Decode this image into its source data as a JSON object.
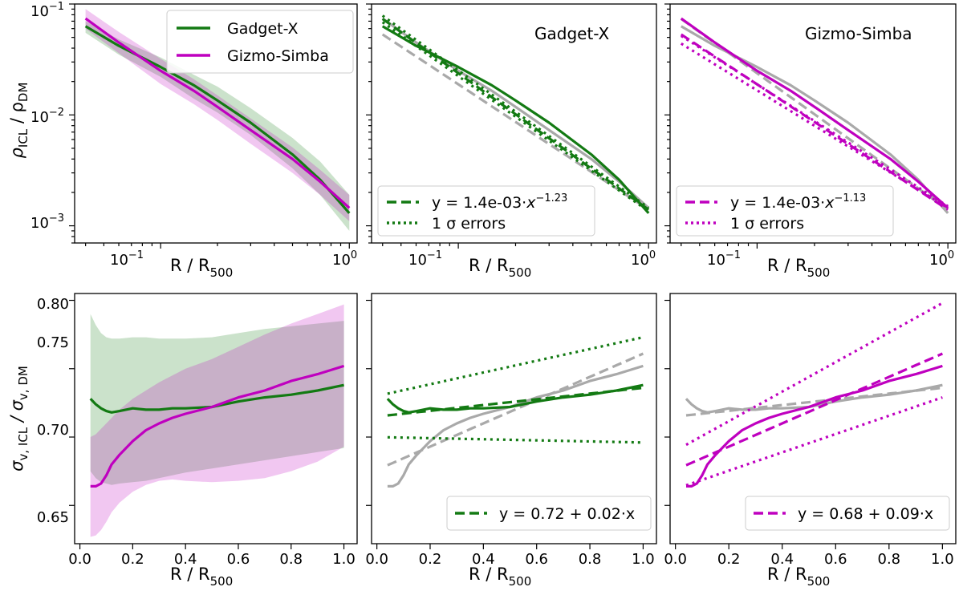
{
  "figure": {
    "axis_labels": {
      "x_main": "R / R",
      "x_sub": "500",
      "y_top_main": "ρ",
      "y_top_sub_num": "ICL",
      "y_top_sep": " / ρ",
      "y_top_sub_den": "DM",
      "y_bottom_main": "σ",
      "y_bottom_sub_num": "v, ICL",
      "y_bottom_sep": " / σ",
      "y_bottom_sub_den": "v, DM"
    },
    "log_ticks_y": [
      {
        "base": "10",
        "exp": "−1",
        "value": 0.1
      },
      {
        "base": "10",
        "exp": "−2",
        "value": 0.01
      },
      {
        "base": "10",
        "exp": "−3",
        "value": 0.001
      }
    ],
    "log_ticks_x": [
      {
        "base": "10",
        "exp": "−1",
        "value": 0.1
      },
      {
        "base": "10",
        "exp": "0",
        "value": 1
      }
    ],
    "lin_ticks_x": [
      "0.0",
      "0.2",
      "0.4",
      "0.6",
      "0.8",
      "1.0"
    ],
    "lin_ticks_y": [
      "0.65",
      "0.70",
      "0.75",
      "0.80"
    ],
    "colors": {
      "gadget": "#137a13",
      "gizmo": "#bf00bf",
      "gray": "#a9a9a9"
    },
    "legend_main": {
      "gadget": "Gadget-X",
      "gizmo": "Gizmo-Simba"
    },
    "panel_titles": {
      "top_middle": "Gadget-X",
      "top_right": "Gizmo-Simba"
    },
    "fit_legend_top_gadget": {
      "prefix": "y = 1.4e-03·",
      "x": "x",
      "exp": "−1.23",
      "errors": "1 σ errors"
    },
    "fit_legend_top_gizmo": {
      "prefix": "y = 1.4e-03·",
      "x": "x",
      "exp": "−1.13",
      "errors": "1 σ errors"
    },
    "fit_legend_bottom_gadget": "y = 0.72 + 0.02·x",
    "fit_legend_bottom_gizmo": "y = 0.68 + 0.09·x"
  },
  "chart_data": [
    {
      "panel": "top-left",
      "type": "line",
      "xscale": "log",
      "yscale": "log",
      "xlim": [
        0.035,
        1.1
      ],
      "ylim": [
        0.0007,
        0.1
      ],
      "xlabel": "R / R500",
      "ylabel": "ρICL / ρDM",
      "legend": "top-right",
      "series": [
        {
          "name": "Gadget-X",
          "x": [
            0.04,
            0.06,
            0.1,
            0.15,
            0.2,
            0.3,
            0.5,
            0.7,
            1.0
          ],
          "y": [
            0.063,
            0.042,
            0.027,
            0.0185,
            0.0135,
            0.0085,
            0.0044,
            0.0026,
            0.0013
          ],
          "lo": [
            0.055,
            0.035,
            0.022,
            0.014,
            0.0105,
            0.0066,
            0.0033,
            0.0019,
            0.0009
          ],
          "hi": [
            0.07,
            0.048,
            0.033,
            0.023,
            0.018,
            0.0115,
            0.0062,
            0.0038,
            0.0019
          ]
        },
        {
          "name": "Gizmo-Simba",
          "x": [
            0.04,
            0.06,
            0.1,
            0.15,
            0.2,
            0.3,
            0.5,
            0.7,
            1.0
          ],
          "y": [
            0.074,
            0.045,
            0.025,
            0.0165,
            0.0118,
            0.0073,
            0.004,
            0.0025,
            0.00145
          ],
          "lo": [
            0.06,
            0.036,
            0.019,
            0.0125,
            0.009,
            0.0055,
            0.003,
            0.0019,
            0.0011
          ],
          "hi": [
            0.09,
            0.056,
            0.032,
            0.021,
            0.015,
            0.0093,
            0.0051,
            0.0032,
            0.0019
          ]
        }
      ]
    },
    {
      "panel": "top-middle",
      "type": "line",
      "xscale": "log",
      "yscale": "log",
      "xlim": [
        0.035,
        1.1
      ],
      "ylim": [
        0.0007,
        0.1
      ],
      "title": "Gadget-X",
      "legend": "bottom-left",
      "series": [
        {
          "name": "Gadget-X",
          "x": [
            0.04,
            0.06,
            0.1,
            0.15,
            0.2,
            0.3,
            0.5,
            0.7,
            1.0
          ],
          "y": [
            0.063,
            0.042,
            0.027,
            0.0185,
            0.0135,
            0.0085,
            0.0044,
            0.0026,
            0.0013
          ]
        },
        {
          "name": "Gizmo-Simba (gray)",
          "x": [
            0.04,
            0.06,
            0.1,
            0.15,
            0.2,
            0.3,
            0.5,
            0.7,
            1.0
          ],
          "y": [
            0.074,
            0.045,
            0.025,
            0.0165,
            0.0118,
            0.0073,
            0.004,
            0.0025,
            0.00145
          ]
        },
        {
          "name": "fit",
          "style": "dashed",
          "amplitude": 0.0014,
          "exponent": -1.23
        },
        {
          "name": "1 σ errors",
          "style": "dotted",
          "amplitudes": [
            0.00145,
            0.00135
          ],
          "exponents": [
            -1.24,
            -1.22
          ]
        },
        {
          "name": "Gizmo-Simba fit (gray)",
          "style": "dashed",
          "amplitude": 0.0014,
          "exponent": -1.13
        }
      ]
    },
    {
      "panel": "top-right",
      "type": "line",
      "xscale": "log",
      "yscale": "log",
      "xlim": [
        0.035,
        1.1
      ],
      "ylim": [
        0.0007,
        0.1
      ],
      "title": "Gizmo-Simba",
      "legend": "bottom-left",
      "series": [
        {
          "name": "Gizmo-Simba",
          "x": [
            0.04,
            0.06,
            0.1,
            0.15,
            0.2,
            0.3,
            0.5,
            0.7,
            1.0
          ],
          "y": [
            0.074,
            0.045,
            0.025,
            0.0165,
            0.0118,
            0.0073,
            0.004,
            0.0025,
            0.00145
          ]
        },
        {
          "name": "Gadget-X (gray)",
          "x": [
            0.04,
            0.06,
            0.1,
            0.15,
            0.2,
            0.3,
            0.5,
            0.7,
            1.0
          ],
          "y": [
            0.063,
            0.042,
            0.027,
            0.0185,
            0.0135,
            0.0085,
            0.0044,
            0.0026,
            0.0013
          ]
        },
        {
          "name": "fit",
          "style": "dashed",
          "amplitude": 0.0014,
          "exponent": -1.13
        },
        {
          "name": "1 σ errors",
          "style": "dotted",
          "amplitudes": [
            0.0015,
            0.00145
          ],
          "exponents": [
            -1.1,
            -1.06
          ]
        },
        {
          "name": "Gadget-X fit (gray)",
          "style": "dashed",
          "amplitude": 0.0014,
          "exponent": -1.23
        }
      ]
    },
    {
      "panel": "bottom-left",
      "type": "line",
      "xlim": [
        -0.02,
        1.05
      ],
      "ylim": [
        0.622,
        0.805
      ],
      "xlabel": "R / R500",
      "ylabel": "σv,ICL / σv,DM",
      "series": [
        {
          "name": "Gadget-X",
          "x": [
            0.04,
            0.06,
            0.08,
            0.1,
            0.12,
            0.15,
            0.2,
            0.25,
            0.3,
            0.35,
            0.4,
            0.5,
            0.6,
            0.7,
            0.8,
            0.9,
            1.0
          ],
          "y": [
            0.728,
            0.724,
            0.721,
            0.719,
            0.718,
            0.719,
            0.721,
            0.72,
            0.72,
            0.721,
            0.721,
            0.722,
            0.726,
            0.729,
            0.731,
            0.734,
            0.738
          ],
          "lo": [
            0.675,
            0.67,
            0.667,
            0.666,
            0.665,
            0.666,
            0.667,
            0.668,
            0.67,
            0.672,
            0.674,
            0.677,
            0.68,
            0.683,
            0.686,
            0.689,
            0.692
          ],
          "hi": [
            0.79,
            0.782,
            0.776,
            0.773,
            0.772,
            0.772,
            0.773,
            0.773,
            0.772,
            0.772,
            0.772,
            0.773,
            0.776,
            0.779,
            0.781,
            0.783,
            0.785
          ]
        },
        {
          "name": "Gizmo-Simba",
          "x": [
            0.04,
            0.06,
            0.08,
            0.1,
            0.12,
            0.15,
            0.2,
            0.25,
            0.3,
            0.35,
            0.4,
            0.5,
            0.6,
            0.7,
            0.8,
            0.9,
            1.0
          ],
          "y": [
            0.664,
            0.664,
            0.666,
            0.672,
            0.68,
            0.687,
            0.697,
            0.705,
            0.71,
            0.714,
            0.717,
            0.722,
            0.729,
            0.734,
            0.741,
            0.746,
            0.752
          ],
          "lo": [
            0.627,
            0.628,
            0.632,
            0.638,
            0.645,
            0.652,
            0.66,
            0.665,
            0.668,
            0.669,
            0.668,
            0.667,
            0.668,
            0.67,
            0.675,
            0.682,
            0.693
          ],
          "hi": [
            0.7,
            0.702,
            0.706,
            0.71,
            0.714,
            0.72,
            0.728,
            0.734,
            0.74,
            0.745,
            0.75,
            0.757,
            0.766,
            0.775,
            0.783,
            0.79,
            0.797
          ]
        }
      ]
    },
    {
      "panel": "bottom-middle",
      "type": "line",
      "xlim": [
        -0.02,
        1.05
      ],
      "ylim": [
        0.622,
        0.805
      ],
      "xlabel": "R / R500",
      "legend": "bottom-right",
      "series": [
        {
          "name": "Gadget-X",
          "x": [
            0.04,
            0.06,
            0.08,
            0.1,
            0.12,
            0.15,
            0.2,
            0.25,
            0.3,
            0.35,
            0.4,
            0.5,
            0.6,
            0.7,
            0.8,
            0.9,
            1.0
          ],
          "y": [
            0.728,
            0.724,
            0.721,
            0.719,
            0.718,
            0.719,
            0.721,
            0.72,
            0.72,
            0.721,
            0.721,
            0.722,
            0.726,
            0.729,
            0.731,
            0.734,
            0.738
          ]
        },
        {
          "name": "Gizmo-Simba (gray)",
          "x": [
            0.04,
            0.06,
            0.08,
            0.1,
            0.12,
            0.15,
            0.2,
            0.25,
            0.3,
            0.35,
            0.4,
            0.5,
            0.6,
            0.7,
            0.8,
            0.9,
            1.0
          ],
          "y": [
            0.664,
            0.664,
            0.666,
            0.672,
            0.68,
            0.687,
            0.697,
            0.705,
            0.71,
            0.714,
            0.717,
            0.722,
            0.729,
            0.734,
            0.741,
            0.746,
            0.752
          ]
        },
        {
          "name": "fit",
          "style": "dashed",
          "intercept": 0.715,
          "slope": 0.021
        },
        {
          "name": "1 σ upper",
          "style": "dotted",
          "intercept": 0.73,
          "slope": 0.043
        },
        {
          "name": "1 σ lower",
          "style": "dotted",
          "intercept": 0.7,
          "slope": -0.004
        },
        {
          "name": "Gizmo-Simba fit (gray)",
          "style": "dashed",
          "intercept": 0.676,
          "slope": 0.085
        }
      ]
    },
    {
      "panel": "bottom-right",
      "type": "line",
      "xlim": [
        -0.02,
        1.05
      ],
      "ylim": [
        0.622,
        0.805
      ],
      "xlabel": "R / R500",
      "legend": "bottom-right",
      "series": [
        {
          "name": "Gizmo-Simba",
          "x": [
            0.04,
            0.06,
            0.08,
            0.1,
            0.12,
            0.15,
            0.2,
            0.25,
            0.3,
            0.35,
            0.4,
            0.5,
            0.6,
            0.7,
            0.8,
            0.9,
            1.0
          ],
          "y": [
            0.664,
            0.664,
            0.666,
            0.672,
            0.68,
            0.687,
            0.697,
            0.705,
            0.71,
            0.714,
            0.717,
            0.722,
            0.729,
            0.734,
            0.741,
            0.746,
            0.752
          ]
        },
        {
          "name": "Gadget-X (gray)",
          "x": [
            0.04,
            0.06,
            0.08,
            0.1,
            0.12,
            0.15,
            0.2,
            0.25,
            0.3,
            0.35,
            0.4,
            0.5,
            0.6,
            0.7,
            0.8,
            0.9,
            1.0
          ],
          "y": [
            0.728,
            0.724,
            0.721,
            0.719,
            0.718,
            0.719,
            0.721,
            0.72,
            0.72,
            0.721,
            0.721,
            0.722,
            0.726,
            0.729,
            0.731,
            0.734,
            0.738
          ]
        },
        {
          "name": "fit",
          "style": "dashed",
          "intercept": 0.676,
          "slope": 0.085
        },
        {
          "name": "1 σ upper",
          "style": "dotted",
          "intercept": 0.69,
          "slope": 0.108
        },
        {
          "name": "1 σ lower",
          "style": "dotted",
          "intercept": 0.662,
          "slope": 0.067
        },
        {
          "name": "Gadget-X fit (gray)",
          "style": "dashed",
          "intercept": 0.715,
          "slope": 0.021
        }
      ]
    }
  ]
}
